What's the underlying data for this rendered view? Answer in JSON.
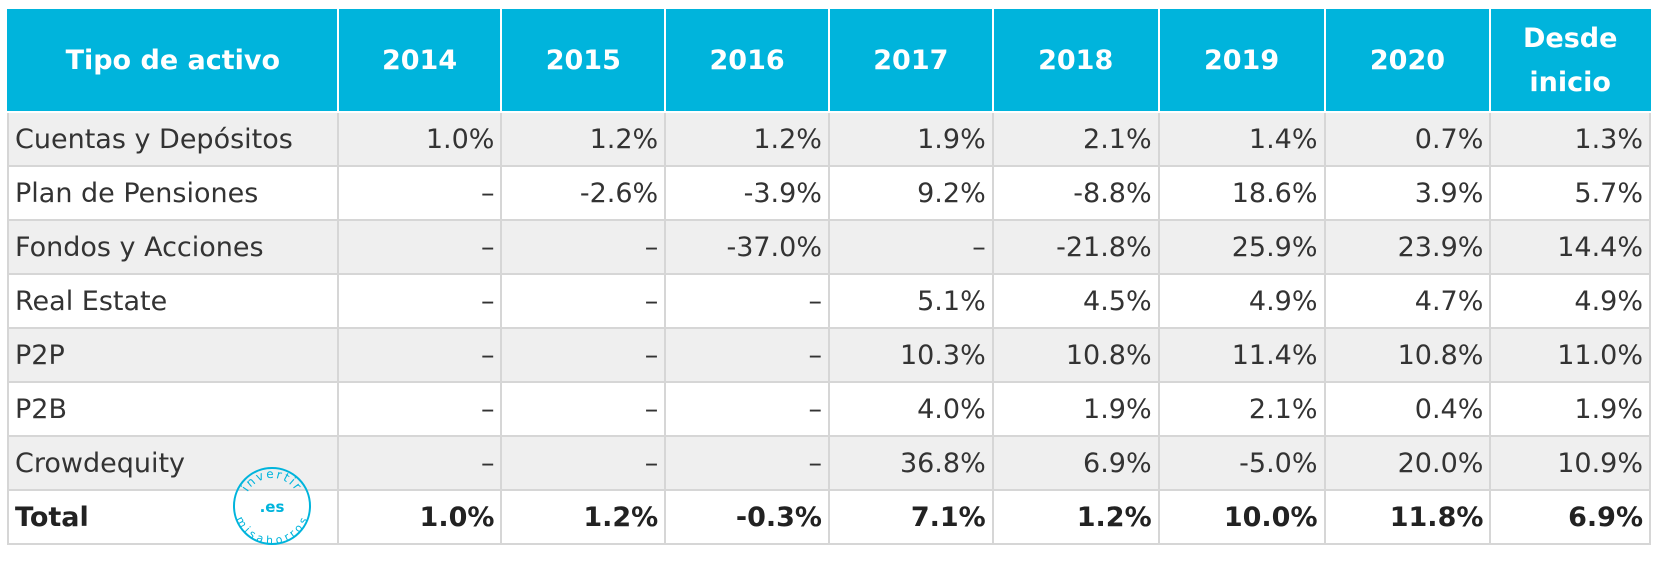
{
  "table": {
    "headers": [
      "Tipo de activo",
      "2014",
      "2015",
      "2016",
      "2017",
      "2018",
      "2019",
      "2020",
      "Desde inicio"
    ],
    "rows": [
      {
        "label": "Cuentas y Depósitos",
        "values": [
          "1.0%",
          "1.2%",
          "1.2%",
          "1.9%",
          "2.1%",
          "1.4%",
          "0.7%",
          "1.3%"
        ]
      },
      {
        "label": "Plan de Pensiones",
        "values": [
          "–",
          "-2.6%",
          "-3.9%",
          "9.2%",
          "-8.8%",
          "18.6%",
          "3.9%",
          "5.7%"
        ]
      },
      {
        "label": "Fondos y Acciones",
        "values": [
          "–",
          "–",
          "-37.0%",
          "–",
          "-21.8%",
          "25.9%",
          "23.9%",
          "14.4%"
        ]
      },
      {
        "label": "Real Estate",
        "values": [
          "–",
          "–",
          "–",
          "5.1%",
          "4.5%",
          "4.9%",
          "4.7%",
          "4.9%"
        ]
      },
      {
        "label": "P2P",
        "values": [
          "–",
          "–",
          "–",
          "10.3%",
          "10.8%",
          "11.4%",
          "10.8%",
          "11.0%"
        ]
      },
      {
        "label": "P2B",
        "values": [
          "–",
          "–",
          "–",
          "4.0%",
          "1.9%",
          "2.1%",
          "0.4%",
          "1.9%"
        ]
      },
      {
        "label": "Crowdequity",
        "values": [
          "–",
          "–",
          "–",
          "36.8%",
          "6.9%",
          "-5.0%",
          "20.0%",
          "10.9%"
        ]
      }
    ],
    "total": {
      "label": "Total",
      "values": [
        "1.0%",
        "1.2%",
        "-0.3%",
        "7.1%",
        "1.2%",
        "10.0%",
        "11.8%",
        "6.9%"
      ]
    }
  },
  "watermark": {
    "top_text": "invertir",
    "center_text": ".es",
    "bottom_text": "misahorros"
  },
  "colors": {
    "header_bg": "#00b4dc",
    "header_text": "#ffffff",
    "stripe": "#efefef",
    "watermark": "#00b4dc"
  }
}
